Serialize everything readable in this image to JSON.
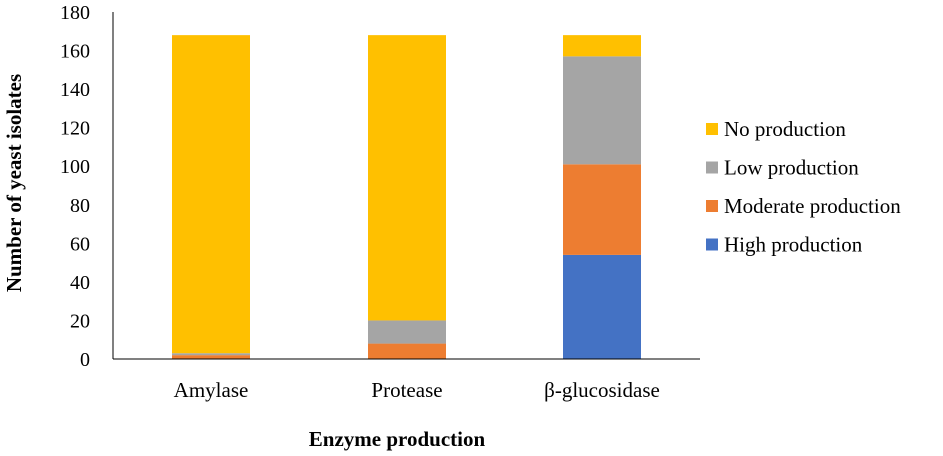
{
  "chart_data": {
    "type": "bar",
    "stacked": true,
    "title": "",
    "xlabel": "Enzyme production",
    "ylabel": "Number of yeast isolates",
    "ylim": [
      0,
      180
    ],
    "yticks": [
      0,
      20,
      40,
      60,
      80,
      100,
      120,
      140,
      160,
      180
    ],
    "grid": false,
    "legend_position": "right",
    "categories": [
      "Amylase",
      "Protease",
      "β-glucosidase"
    ],
    "series": [
      {
        "name": "High production",
        "color": "#4472C4",
        "values": [
          0,
          0,
          54
        ]
      },
      {
        "name": "Moderate production",
        "color": "#ED7D31",
        "values": [
          2,
          8,
          47
        ]
      },
      {
        "name": "Low production",
        "color": "#A5A5A5",
        "values": [
          1,
          12,
          56
        ]
      },
      {
        "name": "No production",
        "color": "#FFC000",
        "values": [
          165,
          148,
          11
        ]
      }
    ],
    "legend_order": [
      "No production",
      "Low production",
      "Moderate production",
      "High production"
    ]
  }
}
